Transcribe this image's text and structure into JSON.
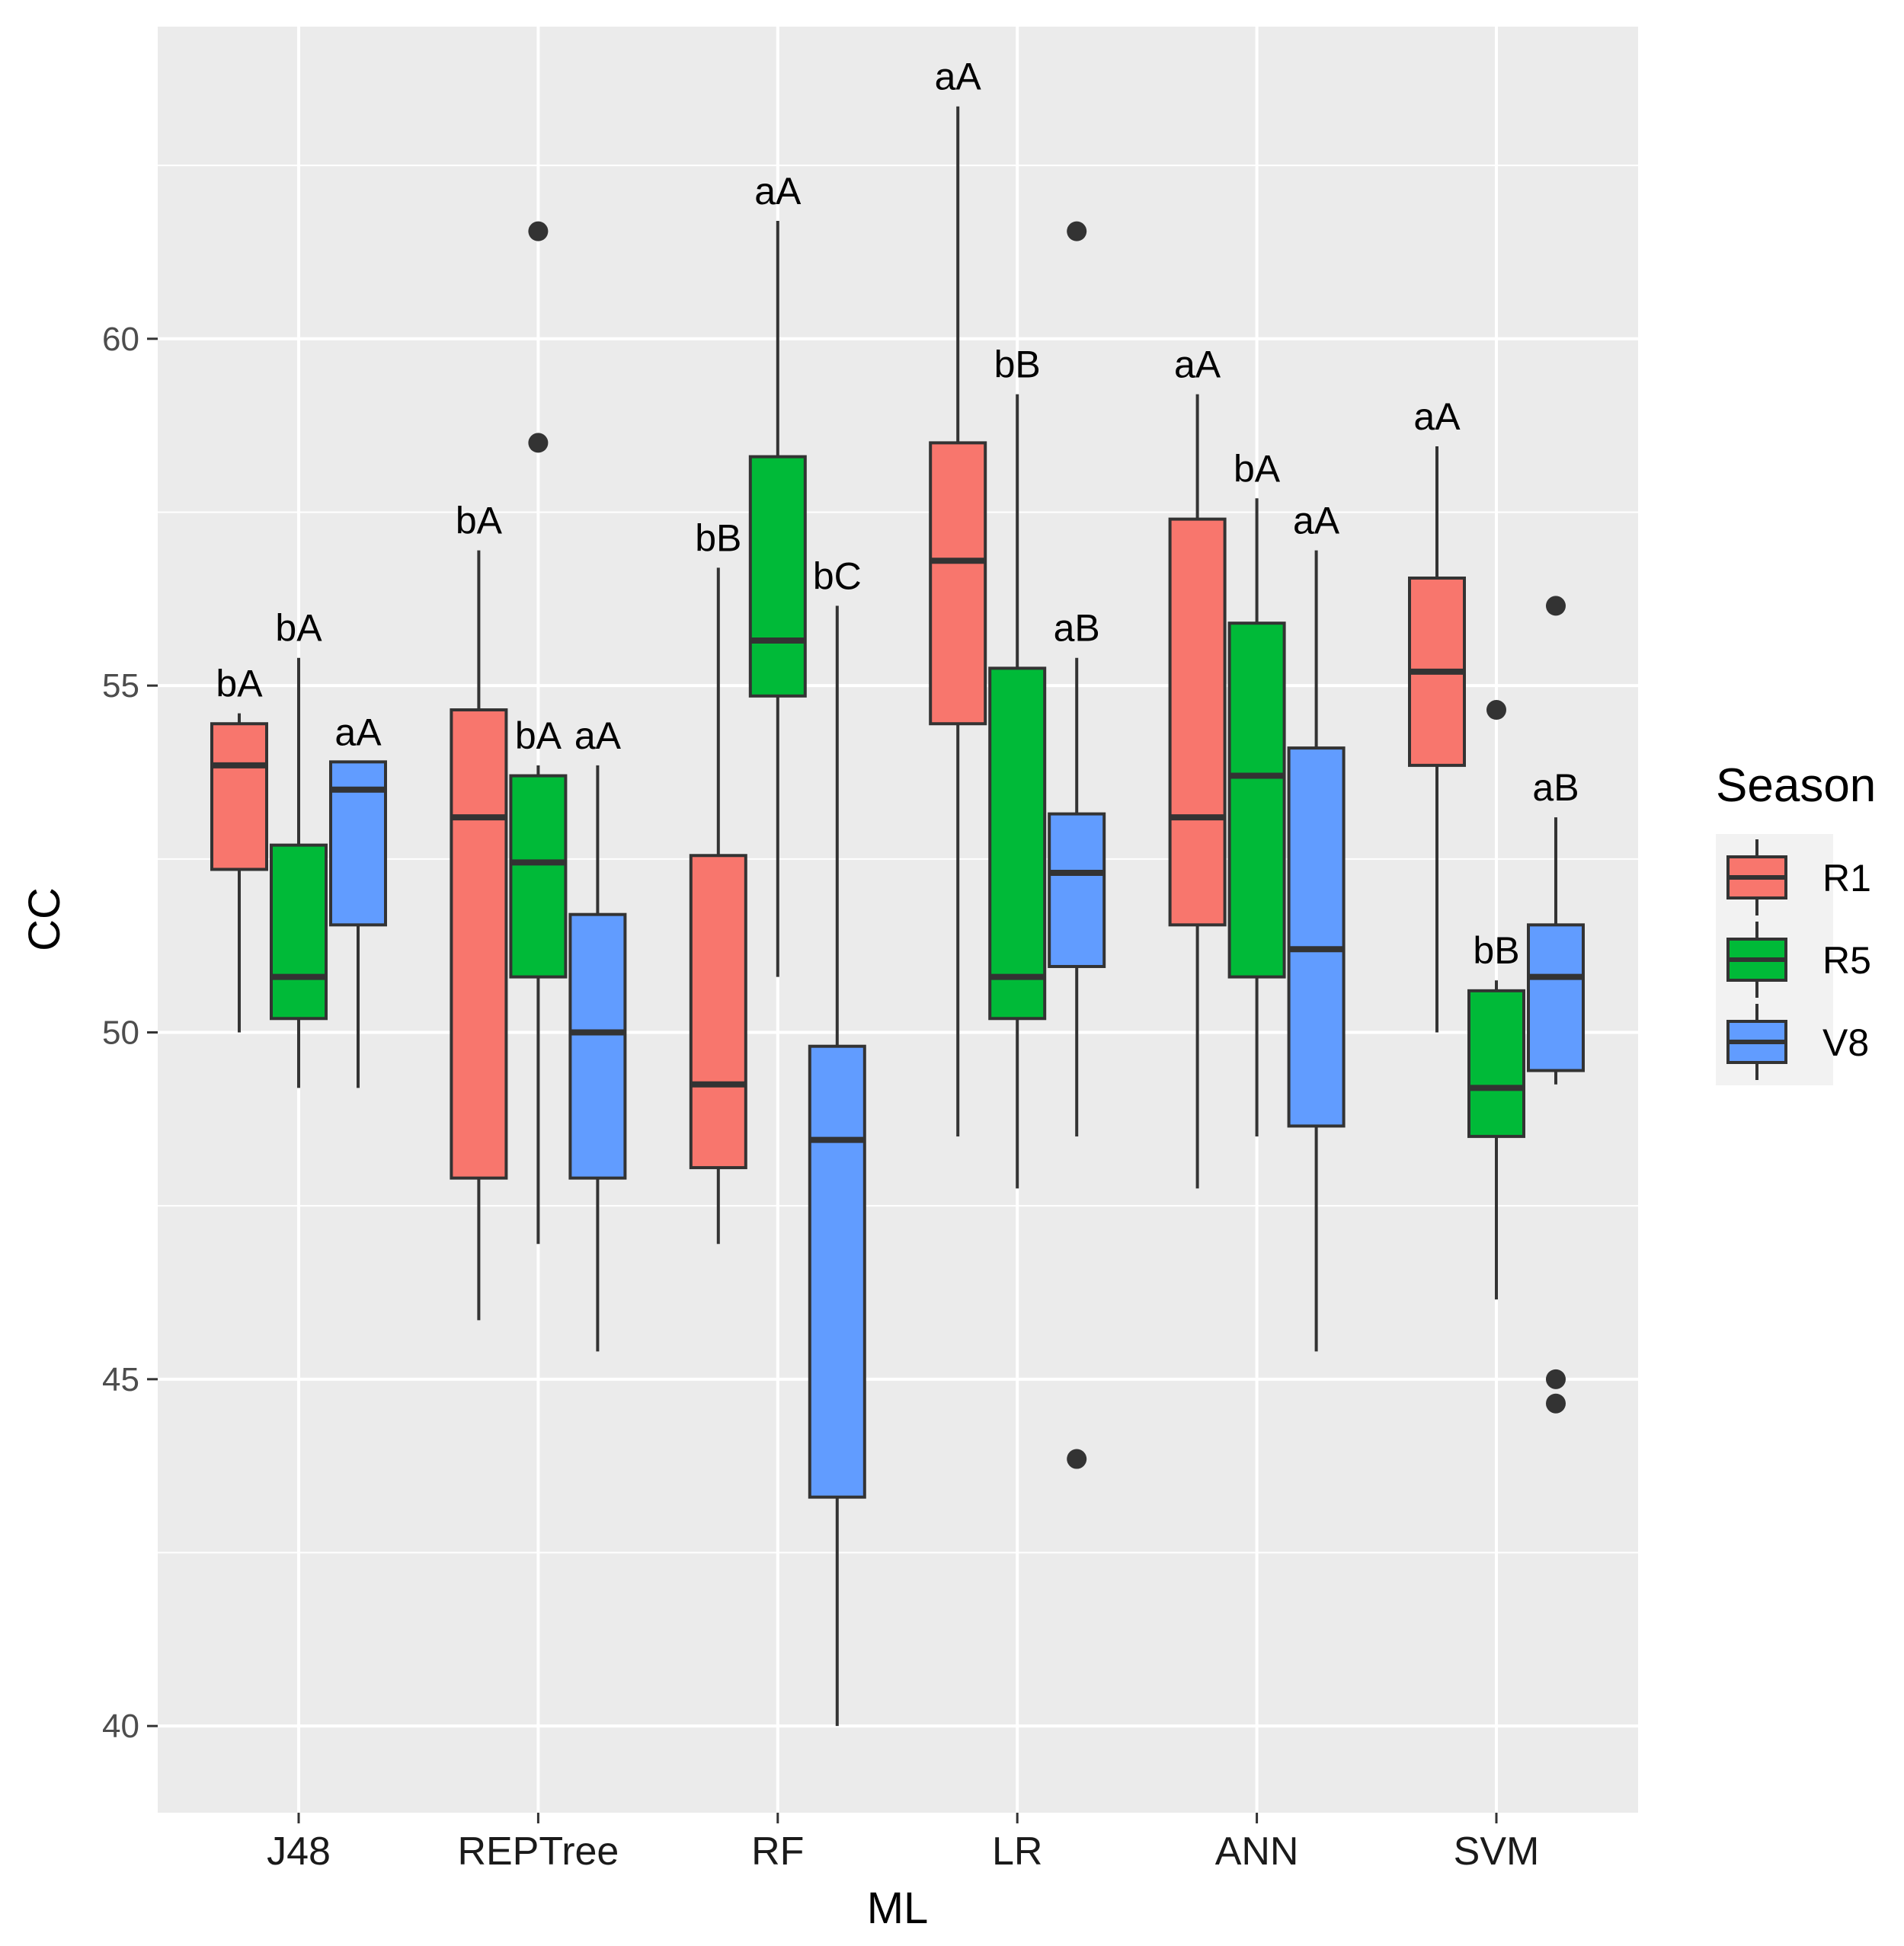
{
  "chart_data": {
    "type": "boxplot",
    "xlabel": "ML",
    "ylabel": "CC",
    "ylim": [
      38.75,
      64.5
    ],
    "y_ticks": [
      40,
      45,
      50,
      55,
      60
    ],
    "y_minor_ticks": [
      42.5,
      47.5,
      52.5,
      57.5,
      62.5
    ],
    "grid": true,
    "categories": [
      "J48",
      "REPTree",
      "RF",
      "LR",
      "ANN",
      "SVM"
    ],
    "legend": {
      "title": "Season",
      "position": "right",
      "entries": [
        {
          "name": "R1",
          "color": "#F8766D"
        },
        {
          "name": "R5",
          "color": "#00BA38"
        },
        {
          "name": "V8",
          "color": "#619CFF"
        }
      ]
    },
    "series": [
      {
        "name": "R1",
        "color": "#F8766D",
        "boxes": [
          {
            "category": "J48",
            "whisker_low": 50.0,
            "q1": 52.35,
            "median": 53.85,
            "q3": 54.45,
            "whisker_high": 54.6,
            "outliers": [],
            "label": "bA"
          },
          {
            "category": "REPTree",
            "whisker_low": 45.85,
            "q1": 47.9,
            "median": 53.1,
            "q3": 54.65,
            "whisker_high": 56.95,
            "outliers": [],
            "label": "bA"
          },
          {
            "category": "RF",
            "whisker_low": 46.95,
            "q1": 48.05,
            "median": 49.25,
            "q3": 52.55,
            "whisker_high": 56.7,
            "outliers": [],
            "label": "bB"
          },
          {
            "category": "LR",
            "whisker_low": 48.5,
            "q1": 54.45,
            "median": 56.8,
            "q3": 58.5,
            "whisker_high": 63.35,
            "outliers": [],
            "label": "aA"
          },
          {
            "category": "ANN",
            "whisker_low": 47.75,
            "q1": 51.55,
            "median": 53.1,
            "q3": 57.4,
            "whisker_high": 59.2,
            "outliers": [],
            "label": "aA"
          },
          {
            "category": "SVM",
            "whisker_low": 50.0,
            "q1": 53.85,
            "median": 55.2,
            "q3": 56.55,
            "whisker_high": 58.45,
            "outliers": [],
            "label": "aA"
          }
        ]
      },
      {
        "name": "R5",
        "color": "#00BA38",
        "boxes": [
          {
            "category": "J48",
            "whisker_low": 49.2,
            "q1": 50.2,
            "median": 50.8,
            "q3": 52.7,
            "whisker_high": 55.4,
            "outliers": [],
            "label": "bA"
          },
          {
            "category": "REPTree",
            "whisker_low": 46.95,
            "q1": 50.8,
            "median": 52.45,
            "q3": 53.7,
            "whisker_high": 53.85,
            "outliers": [
              58.5,
              61.55
            ],
            "label": "bA"
          },
          {
            "category": "RF",
            "whisker_low": 50.8,
            "q1": 54.85,
            "median": 55.65,
            "q3": 58.3,
            "whisker_high": 61.7,
            "outliers": [],
            "label": "aA"
          },
          {
            "category": "LR",
            "whisker_low": 47.75,
            "q1": 50.2,
            "median": 50.8,
            "q3": 55.25,
            "whisker_high": 59.2,
            "outliers": [],
            "label": "bB"
          },
          {
            "category": "ANN",
            "whisker_low": 48.5,
            "q1": 50.8,
            "median": 53.7,
            "q3": 55.9,
            "whisker_high": 57.7,
            "outliers": [],
            "label": "bA"
          },
          {
            "category": "SVM",
            "whisker_low": 46.15,
            "q1": 48.5,
            "median": 49.2,
            "q3": 50.6,
            "whisker_high": 50.75,
            "outliers": [
              54.65
            ],
            "label": "bB"
          }
        ]
      },
      {
        "name": "V8",
        "color": "#619CFF",
        "boxes": [
          {
            "category": "J48",
            "whisker_low": 49.2,
            "q1": 51.55,
            "median": 53.5,
            "q3": 53.9,
            "whisker_high": 53.9,
            "outliers": [],
            "label": "aA"
          },
          {
            "category": "REPTree",
            "whisker_low": 45.4,
            "q1": 47.9,
            "median": 50.0,
            "q3": 51.7,
            "whisker_high": 53.85,
            "outliers": [],
            "label": "aA"
          },
          {
            "category": "RF",
            "whisker_low": 40.0,
            "q1": 43.3,
            "median": 48.45,
            "q3": 49.8,
            "whisker_high": 56.15,
            "outliers": [],
            "label": "bC"
          },
          {
            "category": "LR",
            "whisker_low": 48.5,
            "q1": 50.95,
            "median": 52.3,
            "q3": 53.15,
            "whisker_high": 55.4,
            "outliers": [
              43.85,
              61.55
            ],
            "label": "aB"
          },
          {
            "category": "ANN",
            "whisker_low": 45.4,
            "q1": 48.65,
            "median": 51.2,
            "q3": 54.1,
            "whisker_high": 56.95,
            "outliers": [],
            "label": "aA"
          },
          {
            "category": "SVM",
            "whisker_low": 49.25,
            "q1": 49.45,
            "median": 50.8,
            "q3": 51.55,
            "whisker_high": 53.1,
            "outliers": [
              44.65,
              45.0,
              56.15
            ],
            "label": "aB"
          }
        ]
      }
    ]
  }
}
